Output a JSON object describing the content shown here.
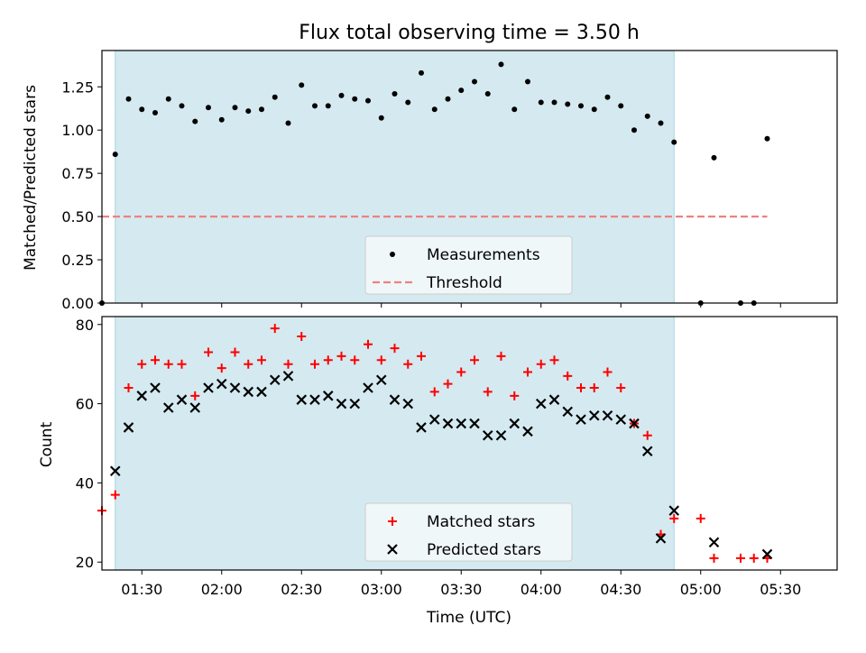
{
  "chart_data": [
    {
      "type": "scatter",
      "title": "Flux total observing time = 3.50 h",
      "xlabel": "",
      "ylabel": "Matched/Predicted stars",
      "ylim": [
        0,
        1.46
      ],
      "yticks": [
        "0.00",
        "0.25",
        "0.50",
        "0.75",
        "1.00",
        "1.25"
      ],
      "ytick_values": [
        0,
        0.25,
        0.5,
        0.75,
        1.0,
        1.25
      ],
      "shaded_range": [
        "01:20",
        "04:50"
      ],
      "series": [
        {
          "name": "Measurements",
          "marker": "dot",
          "color": "#000000",
          "points": [
            [
              "01:15",
              0.0
            ],
            [
              "01:20",
              0.86
            ],
            [
              "01:25",
              1.18
            ],
            [
              "01:30",
              1.12
            ],
            [
              "01:35",
              1.1
            ],
            [
              "01:40",
              1.18
            ],
            [
              "01:45",
              1.14
            ],
            [
              "01:50",
              1.05
            ],
            [
              "01:55",
              1.13
            ],
            [
              "02:00",
              1.06
            ],
            [
              "02:05",
              1.13
            ],
            [
              "02:10",
              1.11
            ],
            [
              "02:15",
              1.12
            ],
            [
              "02:20",
              1.19
            ],
            [
              "02:25",
              1.04
            ],
            [
              "02:30",
              1.26
            ],
            [
              "02:35",
              1.14
            ],
            [
              "02:40",
              1.14
            ],
            [
              "02:45",
              1.2
            ],
            [
              "02:50",
              1.18
            ],
            [
              "02:55",
              1.17
            ],
            [
              "03:00",
              1.07
            ],
            [
              "03:05",
              1.21
            ],
            [
              "03:10",
              1.16
            ],
            [
              "03:15",
              1.33
            ],
            [
              "03:20",
              1.12
            ],
            [
              "03:25",
              1.18
            ],
            [
              "03:30",
              1.23
            ],
            [
              "03:35",
              1.28
            ],
            [
              "03:40",
              1.21
            ],
            [
              "03:45",
              1.38
            ],
            [
              "03:50",
              1.12
            ],
            [
              "03:55",
              1.28
            ],
            [
              "04:00",
              1.16
            ],
            [
              "04:05",
              1.16
            ],
            [
              "04:10",
              1.15
            ],
            [
              "04:15",
              1.14
            ],
            [
              "04:20",
              1.12
            ],
            [
              "04:25",
              1.19
            ],
            [
              "04:30",
              1.14
            ],
            [
              "04:35",
              1.0
            ],
            [
              "04:40",
              1.08
            ],
            [
              "04:45",
              1.04
            ],
            [
              "04:50",
              0.93
            ],
            [
              "05:00",
              0.0
            ],
            [
              "05:05",
              0.84
            ],
            [
              "05:15",
              0.0
            ],
            [
              "05:20",
              0.0
            ],
            [
              "05:25",
              0.95
            ]
          ]
        },
        {
          "name": "Threshold",
          "marker": "dashed-line",
          "color": "#f08080",
          "points": [
            [
              "01:15",
              0.5
            ],
            [
              "05:25",
              0.5
            ]
          ]
        }
      ],
      "legend": "lower-center"
    },
    {
      "type": "scatter",
      "xlabel": "Time (UTC)",
      "ylabel": "Count",
      "ylim": [
        18,
        82
      ],
      "yticks": [
        "20",
        "40",
        "60",
        "80"
      ],
      "ytick_values": [
        20,
        40,
        60,
        80
      ],
      "xticks": [
        "01:30",
        "02:00",
        "02:30",
        "03:00",
        "03:30",
        "04:00",
        "04:30",
        "05:00",
        "05:30"
      ],
      "shaded_range": [
        "01:20",
        "04:50"
      ],
      "series": [
        {
          "name": "Matched stars",
          "marker": "plus",
          "color": "#ff0000",
          "points": [
            [
              "01:15",
              33
            ],
            [
              "01:20",
              37
            ],
            [
              "01:25",
              64
            ],
            [
              "01:30",
              70
            ],
            [
              "01:35",
              71
            ],
            [
              "01:40",
              70
            ],
            [
              "01:45",
              70
            ],
            [
              "01:50",
              62
            ],
            [
              "01:55",
              73
            ],
            [
              "02:00",
              69
            ],
            [
              "02:05",
              73
            ],
            [
              "02:10",
              70
            ],
            [
              "02:15",
              71
            ],
            [
              "02:20",
              79
            ],
            [
              "02:25",
              70
            ],
            [
              "02:30",
              77
            ],
            [
              "02:35",
              70
            ],
            [
              "02:40",
              71
            ],
            [
              "02:45",
              72
            ],
            [
              "02:50",
              71
            ],
            [
              "02:55",
              75
            ],
            [
              "03:00",
              71
            ],
            [
              "03:05",
              74
            ],
            [
              "03:10",
              70
            ],
            [
              "03:15",
              72
            ],
            [
              "03:20",
              63
            ],
            [
              "03:25",
              65
            ],
            [
              "03:30",
              68
            ],
            [
              "03:35",
              71
            ],
            [
              "03:40",
              63
            ],
            [
              "03:45",
              72
            ],
            [
              "03:50",
              62
            ],
            [
              "03:55",
              68
            ],
            [
              "04:00",
              70
            ],
            [
              "04:05",
              71
            ],
            [
              "04:10",
              67
            ],
            [
              "04:15",
              64
            ],
            [
              "04:20",
              64
            ],
            [
              "04:25",
              68
            ],
            [
              "04:30",
              64
            ],
            [
              "04:35",
              55
            ],
            [
              "04:40",
              52
            ],
            [
              "04:45",
              27
            ],
            [
              "04:50",
              31
            ],
            [
              "05:00",
              31
            ],
            [
              "05:05",
              21
            ],
            [
              "05:15",
              21
            ],
            [
              "05:20",
              21
            ],
            [
              "05:25",
              21
            ]
          ]
        },
        {
          "name": "Predicted stars",
          "marker": "x",
          "color": "#000000",
          "points": [
            [
              "01:20",
              43
            ],
            [
              "01:25",
              54
            ],
            [
              "01:30",
              62
            ],
            [
              "01:35",
              64
            ],
            [
              "01:40",
              59
            ],
            [
              "01:45",
              61
            ],
            [
              "01:50",
              59
            ],
            [
              "01:55",
              64
            ],
            [
              "02:00",
              65
            ],
            [
              "02:05",
              64
            ],
            [
              "02:10",
              63
            ],
            [
              "02:15",
              63
            ],
            [
              "02:20",
              66
            ],
            [
              "02:25",
              67
            ],
            [
              "02:30",
              61
            ],
            [
              "02:35",
              61
            ],
            [
              "02:40",
              62
            ],
            [
              "02:45",
              60
            ],
            [
              "02:50",
              60
            ],
            [
              "02:55",
              64
            ],
            [
              "03:00",
              66
            ],
            [
              "03:05",
              61
            ],
            [
              "03:10",
              60
            ],
            [
              "03:15",
              54
            ],
            [
              "03:20",
              56
            ],
            [
              "03:25",
              55
            ],
            [
              "03:30",
              55
            ],
            [
              "03:35",
              55
            ],
            [
              "03:40",
              52
            ],
            [
              "03:45",
              52
            ],
            [
              "03:50",
              55
            ],
            [
              "03:55",
              53
            ],
            [
              "04:00",
              60
            ],
            [
              "04:05",
              61
            ],
            [
              "04:10",
              58
            ],
            [
              "04:15",
              56
            ],
            [
              "04:20",
              57
            ],
            [
              "04:25",
              57
            ],
            [
              "04:30",
              56
            ],
            [
              "04:35",
              55
            ],
            [
              "04:40",
              48
            ],
            [
              "04:45",
              26
            ],
            [
              "04:50",
              33
            ],
            [
              "05:05",
              25
            ],
            [
              "05:25",
              22
            ]
          ]
        }
      ],
      "legend": "lower-center"
    }
  ],
  "colors": {
    "shade": "#d4eaf0",
    "shade_edge": "#a8d4e0",
    "legend_bg": "#f3f8fa"
  }
}
